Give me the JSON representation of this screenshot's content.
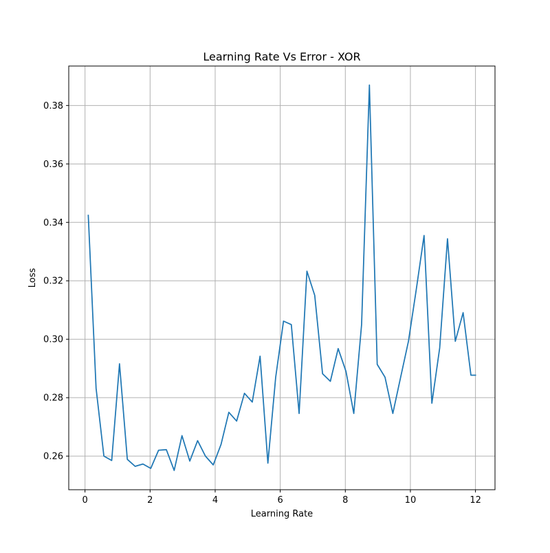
{
  "chart_data": {
    "type": "line",
    "title": "Learning Rate Vs Error - XOR",
    "xlabel": "Learning Rate",
    "ylabel": "Loss",
    "xlim": [
      -0.5,
      12.6
    ],
    "ylim": [
      0.2485,
      0.3935
    ],
    "xticks": [
      0,
      2,
      4,
      6,
      8,
      10,
      12
    ],
    "xtick_labels": [
      "0",
      "2",
      "4",
      "6",
      "8",
      "10",
      "12"
    ],
    "yticks": [
      0.26,
      0.28,
      0.3,
      0.32,
      0.34,
      0.36,
      0.38
    ],
    "ytick_labels": [
      "0.26",
      "0.28",
      "0.30",
      "0.32",
      "0.34",
      "0.36",
      "0.38"
    ],
    "grid": true,
    "series": [
      {
        "color": "#1f77b4",
        "x": [
          0.1,
          0.34,
          0.58,
          0.82,
          1.06,
          1.3,
          1.54,
          1.78,
          2.02,
          2.26,
          2.5,
          2.74,
          2.98,
          3.22,
          3.46,
          3.7,
          3.94,
          4.18,
          4.42,
          4.66,
          4.9,
          5.14,
          5.38,
          5.62,
          5.86,
          6.1,
          6.34,
          6.58,
          6.82,
          7.06,
          7.3,
          7.54,
          7.78,
          8.02,
          8.26,
          8.5,
          8.74,
          8.98,
          9.22,
          9.46,
          9.7,
          9.94,
          10.18,
          10.42,
          10.66,
          10.9,
          11.14,
          11.38,
          11.62,
          11.86,
          12.0
        ],
        "y": [
          0.3424,
          0.2832,
          0.26,
          0.2585,
          0.2916,
          0.2589,
          0.2565,
          0.2573,
          0.2558,
          0.262,
          0.2622,
          0.2551,
          0.267,
          0.2583,
          0.2653,
          0.26,
          0.257,
          0.264,
          0.275,
          0.272,
          0.2815,
          0.2785,
          0.2942,
          0.2576,
          0.287,
          0.3062,
          0.305,
          0.2746,
          0.3233,
          0.315,
          0.2882,
          0.2856,
          0.2968,
          0.289,
          0.2746,
          0.305,
          0.387,
          0.2914,
          0.287,
          0.2746,
          0.287,
          0.2993,
          0.317,
          0.3355,
          0.2781,
          0.297,
          0.3344,
          0.2993,
          0.3091,
          0.2877,
          0.2877
        ]
      }
    ]
  }
}
